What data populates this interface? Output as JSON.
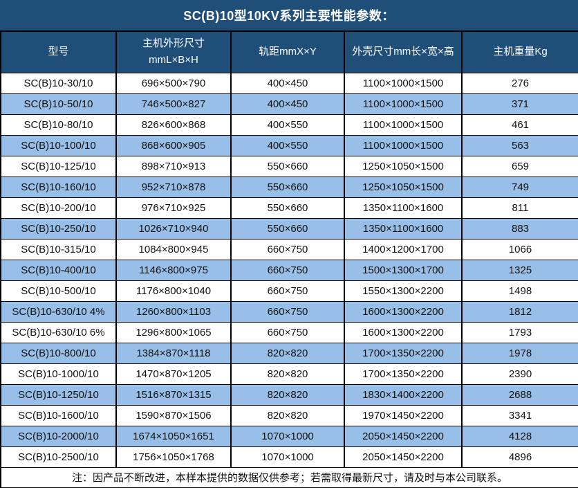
{
  "title": "SC(B)10型10KV系列主要性能参数：",
  "colors": {
    "header_bg": "#1F4E79",
    "stripe_bg": "#97BFE7",
    "border": "#000000",
    "header_text": "#FFFFFF",
    "body_text": "#111111"
  },
  "table": {
    "columns": [
      {
        "lines": [
          "型号"
        ]
      },
      {
        "lines": [
          "主机外形尺寸",
          "mmL×B×H"
        ]
      },
      {
        "lines": [
          "轨距mmX×Y"
        ]
      },
      {
        "lines": [
          "外壳尺寸mm长×宽×高"
        ]
      },
      {
        "lines": [
          "主机重量Kg"
        ]
      }
    ],
    "rows": [
      [
        "SC(B)10-30/10",
        "696×500×790",
        "400×450",
        "1100×1000×1500",
        "276"
      ],
      [
        "SC(B)10-50/10",
        "746×500×827",
        "400×450",
        "1100×1000×1500",
        "371"
      ],
      [
        "SC(B)10-80/10",
        "826×600×868",
        "400×550",
        "1100×1000×1500",
        "461"
      ],
      [
        "SC(B)10-100/10",
        "868×600×905",
        "400×550",
        "1100×1000×1500",
        "563"
      ],
      [
        "SC(B)10-125/10",
        "898×710×913",
        "550×660",
        "1250×1050×1500",
        "659"
      ],
      [
        "SC(B)10-160/10",
        "952×710×878",
        "550×660",
        "1250×1050×1500",
        "749"
      ],
      [
        "SC(B)10-200/10",
        "976×710×925",
        "550×660",
        "1350×1100×1600",
        "811"
      ],
      [
        "SC(B)10-250/10",
        "1026×710×940",
        "550×660",
        "1350×1100×1600",
        "883"
      ],
      [
        "SC(B)10-315/10",
        "1084×800×945",
        "660×750",
        "1400×1200×1700",
        "1066"
      ],
      [
        "SC(B)10-400/10",
        "1146×800×975",
        "660×750",
        "1500×1300×1700",
        "1325"
      ],
      [
        "SC(B)10-500/10",
        "1176×800×1040",
        "660×750",
        "1550×1300×2200",
        "1498"
      ],
      [
        "SC(B)10-630/10 4%",
        "1260×800×1103",
        "660×750",
        "1600×1300×2200",
        "1812"
      ],
      [
        "SC(B)10-630/10 6%",
        "1296×800×1065",
        "660×750",
        "1600×1300×2200",
        "1793"
      ],
      [
        "SC(B)10-800/10",
        "1384×870×1118",
        "820×820",
        "1700×1350×2200",
        "1978"
      ],
      [
        "SC(B)10-1000/10",
        "1470×870×1205",
        "820×820",
        "1700×1350×2200",
        "2390"
      ],
      [
        "SC(B)10-1250/10",
        "1516×870×1315",
        "820×820",
        "1830×1400×2200",
        "2688"
      ],
      [
        "SC(B)10-1600/10",
        "1590×870×1506",
        "820×820",
        "1970×1450×2200",
        "3341"
      ],
      [
        "SC(B)10-2000/10",
        "1674×1050×1651",
        "1070×1000",
        "2050×1450×2200",
        "4128"
      ],
      [
        "SC(B)10-2500/10",
        "1756×1050×1768",
        "1070×1000",
        "2050×1450×2200",
        "4896"
      ]
    ]
  },
  "footer_note": "注：因产品不断改进，本样本提供的数据仅供参考；若需取得最新尺寸，请及时与本公司联系。"
}
